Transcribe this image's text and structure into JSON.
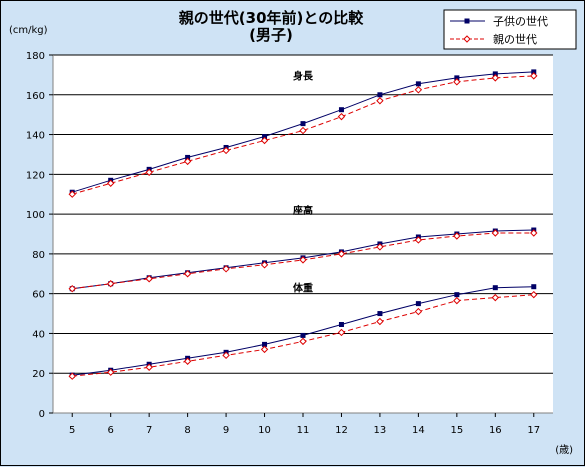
{
  "chart_data": {
    "type": "line",
    "title": "親の世代(30年前)との比較",
    "subtitle": "(男子)",
    "ylabel": "(cm/kg)",
    "xlabel": "(歳)",
    "ylim": [
      0,
      180
    ],
    "yticks": [
      0,
      20,
      40,
      60,
      80,
      100,
      120,
      140,
      160,
      180
    ],
    "xlim": [
      4.5,
      17.5
    ],
    "x": [
      5,
      6,
      7,
      8,
      9,
      10,
      11,
      12,
      13,
      14,
      15,
      16,
      17
    ],
    "grid": true,
    "legend_position": "top-right",
    "series": [
      {
        "name": "子供の世代",
        "color": "#000066",
        "style": "solid",
        "marker": "square-filled",
        "groups": {
          "height": [
            111,
            117,
            122.5,
            128.5,
            133.5,
            139,
            145.5,
            152.5,
            160,
            165.5,
            168.5,
            170.5,
            171.5
          ],
          "sitting": [
            62.5,
            65,
            68,
            70.5,
            73,
            75.5,
            78,
            81,
            85,
            88.5,
            90,
            91.5,
            92
          ],
          "weight": [
            19,
            21.5,
            24.5,
            27.5,
            30.5,
            34.5,
            39,
            44.5,
            50,
            55,
            59.5,
            63,
            63.5
          ]
        }
      },
      {
        "name": "親の世代",
        "color": "#dd0000",
        "style": "dashed",
        "marker": "diamond-open",
        "groups": {
          "height": [
            110,
            115.5,
            121,
            126.5,
            132,
            137,
            142,
            149,
            157,
            162.5,
            166.5,
            168.5,
            169.5
          ],
          "sitting": [
            62.5,
            65,
            67.5,
            70,
            72.5,
            74.5,
            77,
            80,
            83.5,
            87,
            89,
            90.5,
            90.5
          ],
          "weight": [
            18.5,
            20.5,
            23,
            26,
            29,
            32,
            36,
            40.5,
            46,
            51,
            56.5,
            58,
            59.5
          ]
        }
      }
    ],
    "annotations": [
      {
        "text": "身長",
        "group": "height"
      },
      {
        "text": "座高",
        "group": "sitting"
      },
      {
        "text": "体重",
        "group": "weight"
      }
    ]
  }
}
